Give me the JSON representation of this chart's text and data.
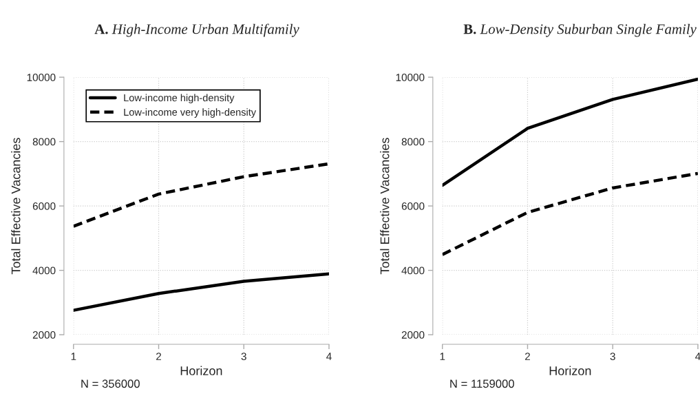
{
  "chart_data": [
    {
      "type": "line",
      "title": "A. High-Income Urban Multifamily",
      "xlabel": "Horizon",
      "ylabel": "Total Effective Vacancies",
      "x": [
        1,
        2,
        3,
        4
      ],
      "xlim": [
        1,
        4
      ],
      "xticks": [
        1,
        2,
        3,
        4
      ],
      "ylim": [
        2000,
        10000
      ],
      "yticks": [
        2000,
        4000,
        6000,
        8000,
        10000
      ],
      "grid": true,
      "legend": "top left",
      "annotations": [
        "N = 356000"
      ],
      "series": [
        {
          "name": "Low-income high-density",
          "color": "#000000",
          "line_style": "solid",
          "values": [
            2760,
            3280,
            3660,
            3890
          ]
        },
        {
          "name": "Low-income very high-density",
          "color": "#000000",
          "line_style": "dashed",
          "values": [
            5370,
            6370,
            6910,
            7310
          ]
        }
      ]
    },
    {
      "type": "line",
      "title": "B. Low-Density Suburban Single Family",
      "xlabel": "Horizon",
      "ylabel": "Total Effective Vacancies",
      "x": [
        1,
        2,
        3,
        4
      ],
      "xlim": [
        1,
        4
      ],
      "xticks": [
        1,
        2,
        3,
        4
      ],
      "ylim": [
        2000,
        10000
      ],
      "yticks": [
        2000,
        4000,
        6000,
        8000,
        10000
      ],
      "grid": true,
      "annotations": [
        "N = 1159000"
      ],
      "series": [
        {
          "color": "#000000",
          "line_style": "solid",
          "values": [
            6640,
            8410,
            9310,
            9940
          ]
        },
        {
          "color": "#000000",
          "line_style": "dashed",
          "values": [
            4490,
            5800,
            6560,
            7010
          ]
        }
      ]
    }
  ]
}
